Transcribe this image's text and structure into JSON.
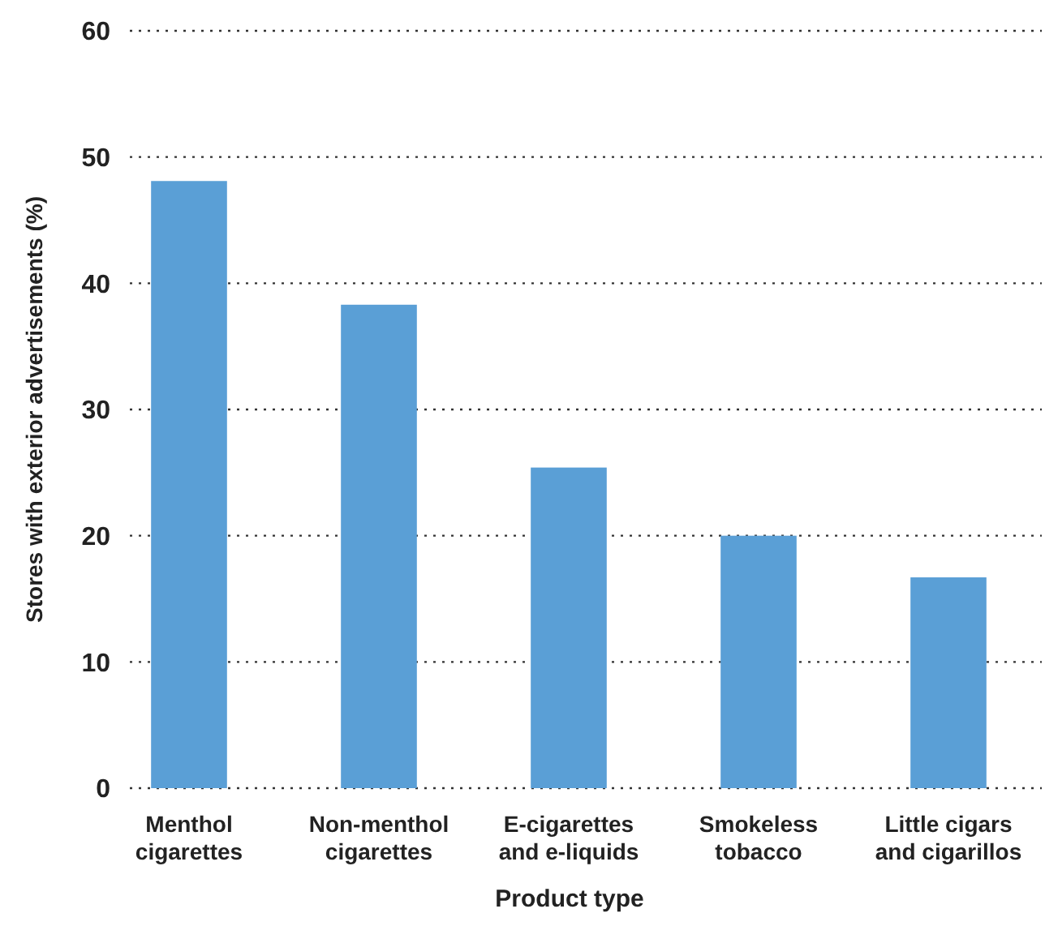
{
  "chart_data": {
    "type": "bar",
    "xlabel": "Product type",
    "ylabel": "Stores with exterior advertisements (%)",
    "categories": [
      "Menthol cigarettes",
      "Non-menthol cigarettes",
      "E-cigarettes and e-liquids",
      "Smokeless tobacco",
      "Little cigars and cigarillos"
    ],
    "values": [
      48.1,
      38.3,
      25.4,
      20.0,
      16.7
    ],
    "color": "#5a9fd6",
    "ylim": [
      0,
      60
    ],
    "yticks": [
      0,
      10,
      20,
      30,
      40,
      50,
      60
    ],
    "grid": "y"
  }
}
